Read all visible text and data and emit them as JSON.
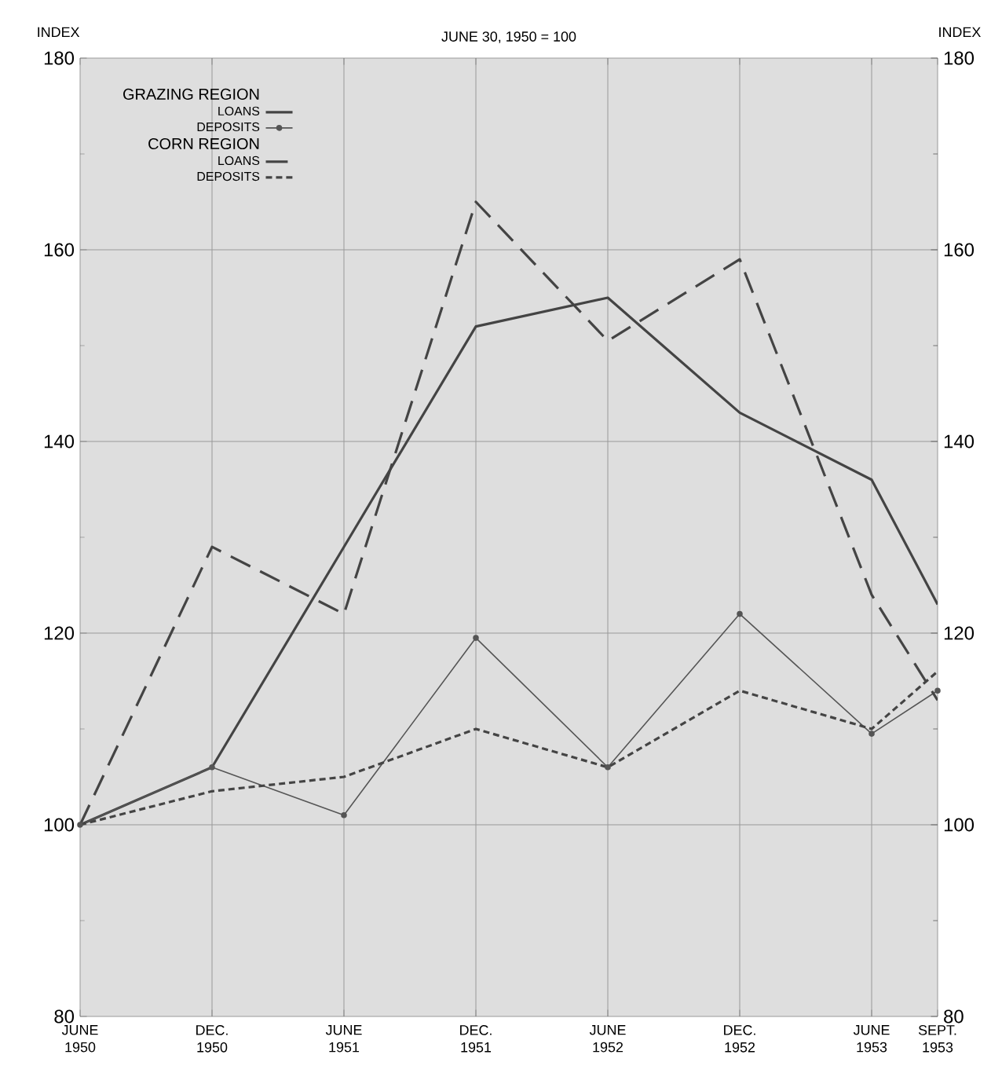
{
  "chart_data": {
    "type": "line",
    "title": "JUNE 30, 1950 = 100",
    "ylabel": "INDEX",
    "y2label": "INDEX",
    "annotations": [
      "GRAZING REGION",
      "CORN REGION"
    ],
    "x": [
      "1950-06",
      "1950-12",
      "1951-06",
      "1951-12",
      "1952-06",
      "1952-12",
      "1953-06",
      "1953-09"
    ],
    "xlim": [
      "1950-06",
      "1953-09"
    ],
    "xticks": [
      {
        "value": "1950-06",
        "label": "JUNE 1950"
      },
      {
        "value": "1950-12",
        "label": "DEC. 1950"
      },
      {
        "value": "1951-06",
        "label": "JUNE 1951"
      },
      {
        "value": "1951-12",
        "label": "DEC. 1951"
      },
      {
        "value": "1952-06",
        "label": "JUNE 1952"
      },
      {
        "value": "1952-12",
        "label": "DEC. 1952"
      },
      {
        "value": "1953-06",
        "label": "JUNE 1953"
      },
      {
        "value": "1953-09",
        "label": "SEPT. 1953"
      }
    ],
    "ylim": [
      80,
      180
    ],
    "yticks": [
      80,
      100,
      120,
      140,
      160,
      180
    ],
    "y2lim": [
      80,
      180
    ],
    "y2ticks": [
      80,
      100,
      120,
      140,
      160,
      180
    ],
    "grid": true,
    "legend": "top left",
    "series": [
      {
        "name": "LOANS",
        "color": "#444444",
        "line_style": "solid",
        "marker": "none",
        "values": [
          100,
          106,
          129,
          152,
          155,
          143,
          136,
          123
        ]
      },
      {
        "name": "DEPOSITS",
        "color": "#555555",
        "line_style": "solid",
        "marker": "circle",
        "values": [
          100,
          106,
          101,
          119.5,
          106,
          122,
          109.5,
          114
        ]
      },
      {
        "name": "LOANS",
        "color": "#444444",
        "line_style": "dashed",
        "marker": "none",
        "values": [
          100,
          129,
          122,
          165,
          150.5,
          159,
          124,
          113
        ]
      },
      {
        "name": "DEPOSITS",
        "color": "#444444",
        "line_style": "dotted",
        "marker": "none",
        "values": [
          100,
          103.5,
          105,
          110,
          106,
          114,
          110,
          116
        ]
      }
    ]
  }
}
